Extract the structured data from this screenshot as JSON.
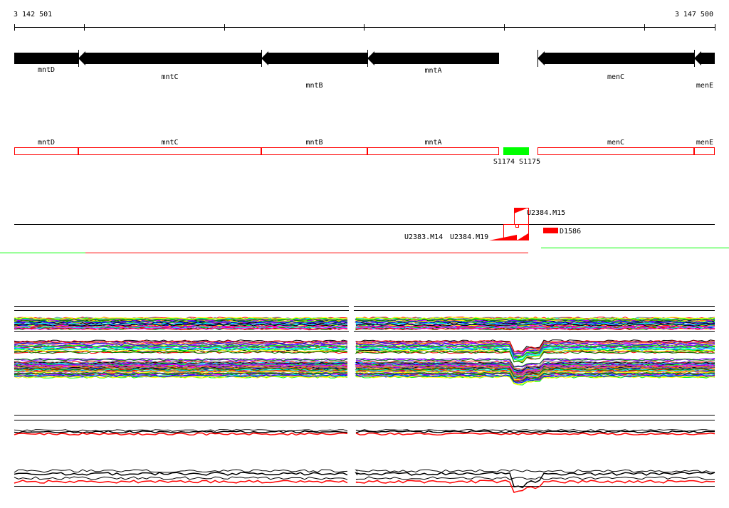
{
  "coordinates": {
    "start": "3 142 501",
    "end": "3 147 500"
  },
  "genes": [
    {
      "name": "mntD",
      "strand": "-"
    },
    {
      "name": "mntC",
      "strand": "-"
    },
    {
      "name": "mntB",
      "strand": "-"
    },
    {
      "name": "mntA",
      "strand": "-"
    },
    {
      "name": "menC",
      "strand": "-"
    },
    {
      "name": "menE",
      "strand": "-"
    }
  ],
  "features": [
    {
      "label": "S1174",
      "color": "#00ff00"
    },
    {
      "label": "S1175",
      "color": "#00ff00"
    }
  ],
  "elements": [
    {
      "label": "U2384.M15"
    },
    {
      "label": "U2383.M14"
    },
    {
      "label": "U2384.M19"
    },
    {
      "label": "D1586"
    }
  ],
  "colors": {
    "gene": "#000000",
    "outline": "#ff0000",
    "segment": "#00ff00"
  }
}
